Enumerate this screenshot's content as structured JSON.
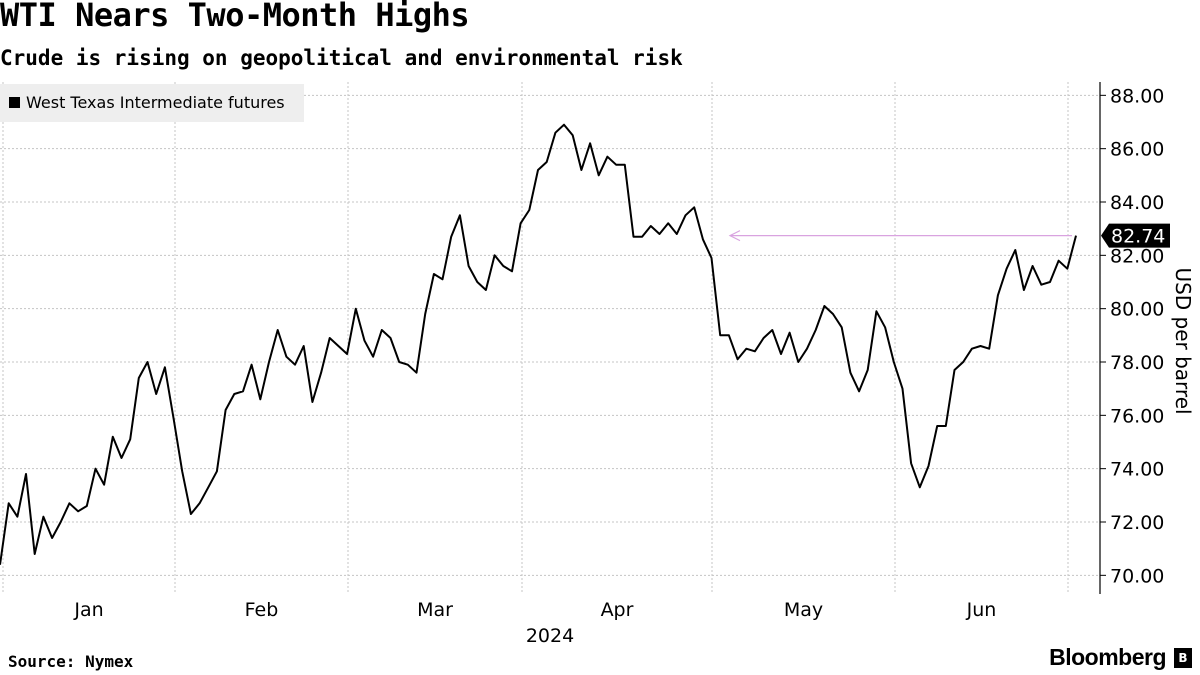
{
  "header": {
    "title": "WTI Nears Two-Month Highs",
    "subtitle": "Crude is rising on geopolitical and environmental risk"
  },
  "legend": {
    "label": "West Texas Intermediate futures"
  },
  "footer": {
    "source": "Source: Nymex",
    "brand": "Bloomberg"
  },
  "colors": {
    "line": "#000000",
    "grid": "#bdbdbd",
    "arrow": "#d9a3e0",
    "legend_bg": "#eeeeee"
  },
  "chart_data": {
    "type": "line",
    "title": "WTI Nears Two-Month Highs",
    "subtitle": "Crude is rising on geopolitical and environmental risk",
    "legend": [
      "West Texas Intermediate futures"
    ],
    "xlabel": "2024",
    "ylabel": "USD per barrel",
    "ylim": [
      69.3,
      88.5
    ],
    "yticks": [
      70,
      72,
      74,
      76,
      78,
      80,
      82,
      84,
      86,
      88
    ],
    "ytick_labels": [
      "70.00",
      "72.00",
      "74.00",
      "76.00",
      "78.00",
      "80.00",
      "82.00",
      "84.00",
      "86.00",
      "88.00"
    ],
    "months": [
      "Jan",
      "Feb",
      "Mar",
      "Apr",
      "May",
      "Jun"
    ],
    "year_label": "2024",
    "last_value_label": "82.74",
    "series": [
      {
        "name": "West Texas Intermediate futures",
        "values": [
          70.4,
          72.7,
          72.2,
          73.8,
          70.8,
          72.2,
          71.4,
          72.0,
          72.7,
          72.4,
          72.6,
          74.0,
          73.4,
          75.2,
          74.4,
          75.1,
          77.4,
          78.0,
          76.8,
          77.8,
          75.9,
          73.9,
          72.3,
          72.7,
          73.3,
          73.9,
          76.2,
          76.8,
          76.9,
          77.9,
          76.6,
          78.0,
          79.2,
          78.2,
          77.9,
          78.6,
          76.5,
          77.6,
          78.9,
          78.6,
          78.3,
          80.0,
          78.8,
          78.2,
          79.2,
          78.9,
          78.0,
          77.9,
          77.6,
          79.8,
          81.3,
          81.1,
          82.7,
          83.5,
          81.6,
          81.0,
          80.7,
          82.0,
          81.6,
          81.4,
          83.2,
          83.7,
          85.2,
          85.5,
          86.6,
          86.9,
          86.5,
          85.2,
          86.2,
          85.0,
          85.7,
          85.4,
          85.4,
          82.7,
          82.7,
          83.1,
          82.8,
          83.2,
          82.8,
          83.5,
          83.8,
          82.6,
          81.9,
          79.0,
          79.0,
          78.1,
          78.5,
          78.4,
          78.9,
          79.2,
          78.3,
          79.1,
          78.0,
          78.5,
          79.2,
          80.1,
          79.8,
          79.3,
          77.6,
          76.9,
          77.7,
          79.9,
          79.3,
          78.0,
          77.0,
          74.2,
          73.3,
          74.1,
          75.6,
          75.6,
          77.7,
          78.0,
          78.5,
          78.6,
          78.5,
          80.5,
          81.5,
          82.2,
          80.7,
          81.6,
          80.9,
          81.0,
          81.8,
          81.5,
          82.74
        ]
      }
    ]
  }
}
